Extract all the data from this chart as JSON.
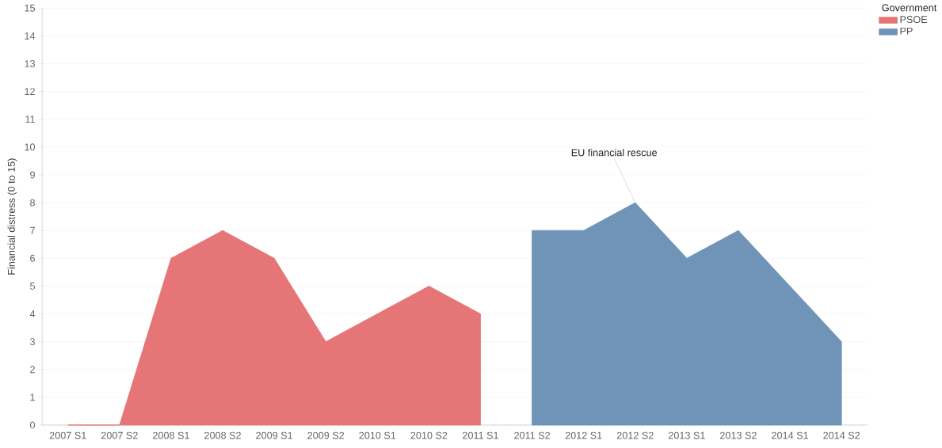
{
  "chart_data": {
    "type": "area",
    "ylabel": "Financial distress (0 to 15)",
    "legend_title": "Government",
    "categories": [
      "2007 S1",
      "2007 S2",
      "2008 S1",
      "2008 S2",
      "2009 S1",
      "2009 S2",
      "2010 S1",
      "2010 S2",
      "2011 S1",
      "2011 S2",
      "2012 S1",
      "2012 S2",
      "2013 S1",
      "2013 S2",
      "2014 S1",
      "2014 S2"
    ],
    "series": [
      {
        "name": "PSOE",
        "color": "#e57576",
        "values": [
          0,
          0,
          6,
          7,
          6,
          3,
          4,
          5,
          4,
          null,
          null,
          null,
          null,
          null,
          null,
          null
        ]
      },
      {
        "name": "PP",
        "color": "#7093b8",
        "values": [
          null,
          null,
          null,
          null,
          null,
          null,
          null,
          null,
          null,
          7,
          7,
          8,
          6,
          7,
          5,
          3
        ]
      }
    ],
    "ylim": [
      0,
      15
    ],
    "yticks": [
      0,
      1,
      2,
      3,
      4,
      5,
      6,
      7,
      8,
      9,
      10,
      11,
      12,
      13,
      14,
      15
    ],
    "grid": "y",
    "legend": "top right",
    "annotations": [
      {
        "text": "EU financial rescue",
        "x": "2012 S2",
        "y": 8
      }
    ]
  }
}
